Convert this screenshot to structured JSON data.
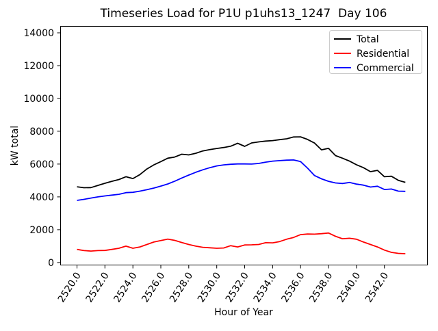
{
  "figure": {
    "background": "#ffffff",
    "frame_color": "#000000",
    "legend_border_color": "#cccccc"
  },
  "chart_data": {
    "type": "line",
    "title": "Timeseries Load for P1U p1uhs13_1247  Day 106",
    "xlabel": "Hour of Year",
    "ylabel": "kW total",
    "grid": false,
    "legend_position": "upper right",
    "xlim": [
      2518.8,
      2545.1
    ],
    "ylim": [
      -170,
      14415
    ],
    "xticks": [
      2520,
      2522,
      2524,
      2526,
      2528,
      2530,
      2532,
      2534,
      2536,
      2538,
      2540,
      2542
    ],
    "xtick_labels": [
      "2520.0",
      "2522.0",
      "2524.0",
      "2526.0",
      "2528.0",
      "2530.0",
      "2532.0",
      "2534.0",
      "2536.0",
      "2538.0",
      "2540.0",
      "2542.0"
    ],
    "yticks": [
      0,
      2000,
      4000,
      6000,
      8000,
      10000,
      12000,
      14000
    ],
    "ytick_labels": [
      "0",
      "2000",
      "4000",
      "6000",
      "8000",
      "10000",
      "12000",
      "14000"
    ],
    "x": [
      2520,
      2520.5,
      2521,
      2521.5,
      2522,
      2522.5,
      2523,
      2523.5,
      2524,
      2524.5,
      2525,
      2525.5,
      2526,
      2526.5,
      2527,
      2527.5,
      2528,
      2528.5,
      2529,
      2529.5,
      2530,
      2530.5,
      2531,
      2531.5,
      2532,
      2532.5,
      2533,
      2533.5,
      2534,
      2534.5,
      2535,
      2535.5,
      2536,
      2536.5,
      2537,
      2537.5,
      2538,
      2538.5,
      2539,
      2539.5,
      2540,
      2540.5,
      2541,
      2541.5,
      2542,
      2542.5,
      2543,
      2543.5
    ],
    "series": [
      {
        "name": "Total",
        "color": "#000000",
        "values": [
          4620,
          4560,
          4570,
          4700,
          4830,
          4950,
          5060,
          5230,
          5120,
          5360,
          5700,
          5950,
          6150,
          6360,
          6430,
          6600,
          6560,
          6660,
          6800,
          6880,
          6950,
          7010,
          7090,
          7270,
          7080,
          7290,
          7350,
          7400,
          7430,
          7490,
          7540,
          7650,
          7660,
          7500,
          7280,
          6870,
          6960,
          6520,
          6360,
          6180,
          5960,
          5780,
          5540,
          5620,
          5230,
          5260,
          5010,
          4890
        ]
      },
      {
        "name": "Residential",
        "color": "#ff0000",
        "values": [
          800,
          730,
          700,
          730,
          740,
          800,
          870,
          1000,
          870,
          950,
          1100,
          1250,
          1340,
          1430,
          1350,
          1220,
          1100,
          1000,
          930,
          900,
          870,
          890,
          1030,
          950,
          1070,
          1080,
          1100,
          1210,
          1200,
          1280,
          1420,
          1530,
          1700,
          1740,
          1730,
          1760,
          1800,
          1600,
          1450,
          1480,
          1420,
          1250,
          1100,
          950,
          760,
          620,
          560,
          540
        ]
      },
      {
        "name": "Commercial",
        "color": "#0000ff",
        "values": [
          3790,
          3850,
          3930,
          4000,
          4060,
          4110,
          4160,
          4260,
          4280,
          4350,
          4440,
          4540,
          4660,
          4790,
          4960,
          5150,
          5330,
          5500,
          5650,
          5780,
          5890,
          5950,
          5990,
          6010,
          6010,
          6000,
          6040,
          6120,
          6180,
          6210,
          6240,
          6250,
          6150,
          5750,
          5300,
          5100,
          4950,
          4850,
          4820,
          4880,
          4780,
          4720,
          4600,
          4650,
          4450,
          4480,
          4350,
          4340
        ]
      }
    ]
  }
}
